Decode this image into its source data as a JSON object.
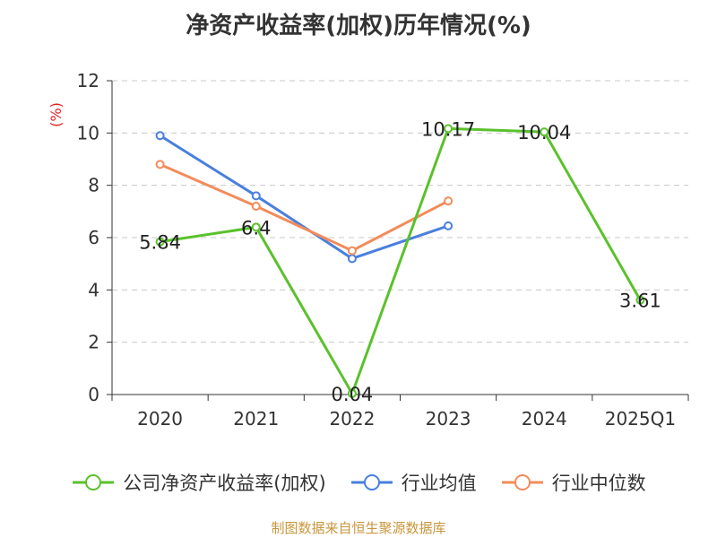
{
  "title": "净资产收益率(加权)历年情况(%)",
  "source": "制图数据来自恒生聚源数据库",
  "chart_data": {
    "type": "line",
    "title": "净资产收益率(加权)历年情况(%)",
    "ylabel": "(%)",
    "xlabel": "",
    "categories": [
      "2020",
      "2021",
      "2022",
      "2023",
      "2024",
      "2025Q1"
    ],
    "ylim": [
      0,
      12
    ],
    "yticks": [
      0,
      2,
      4,
      6,
      8,
      10,
      12
    ],
    "grid": true,
    "legend_position": "bottom",
    "series": [
      {
        "name": "公司净资产收益率(加权)",
        "color": "#5ac12c",
        "values": [
          5.84,
          6.4,
          0.04,
          10.17,
          10.04,
          3.61
        ],
        "labels": [
          "5.84",
          "6.4",
          "0.04",
          "10.17",
          "10.04",
          "3.61"
        ]
      },
      {
        "name": "行业均值",
        "color": "#4a7fdc",
        "values": [
          9.9,
          7.6,
          5.2,
          6.45,
          null,
          null
        ]
      },
      {
        "name": "行业中位数",
        "color": "#f28c5a",
        "values": [
          8.8,
          7.2,
          5.5,
          7.4,
          null,
          null
        ]
      }
    ]
  }
}
